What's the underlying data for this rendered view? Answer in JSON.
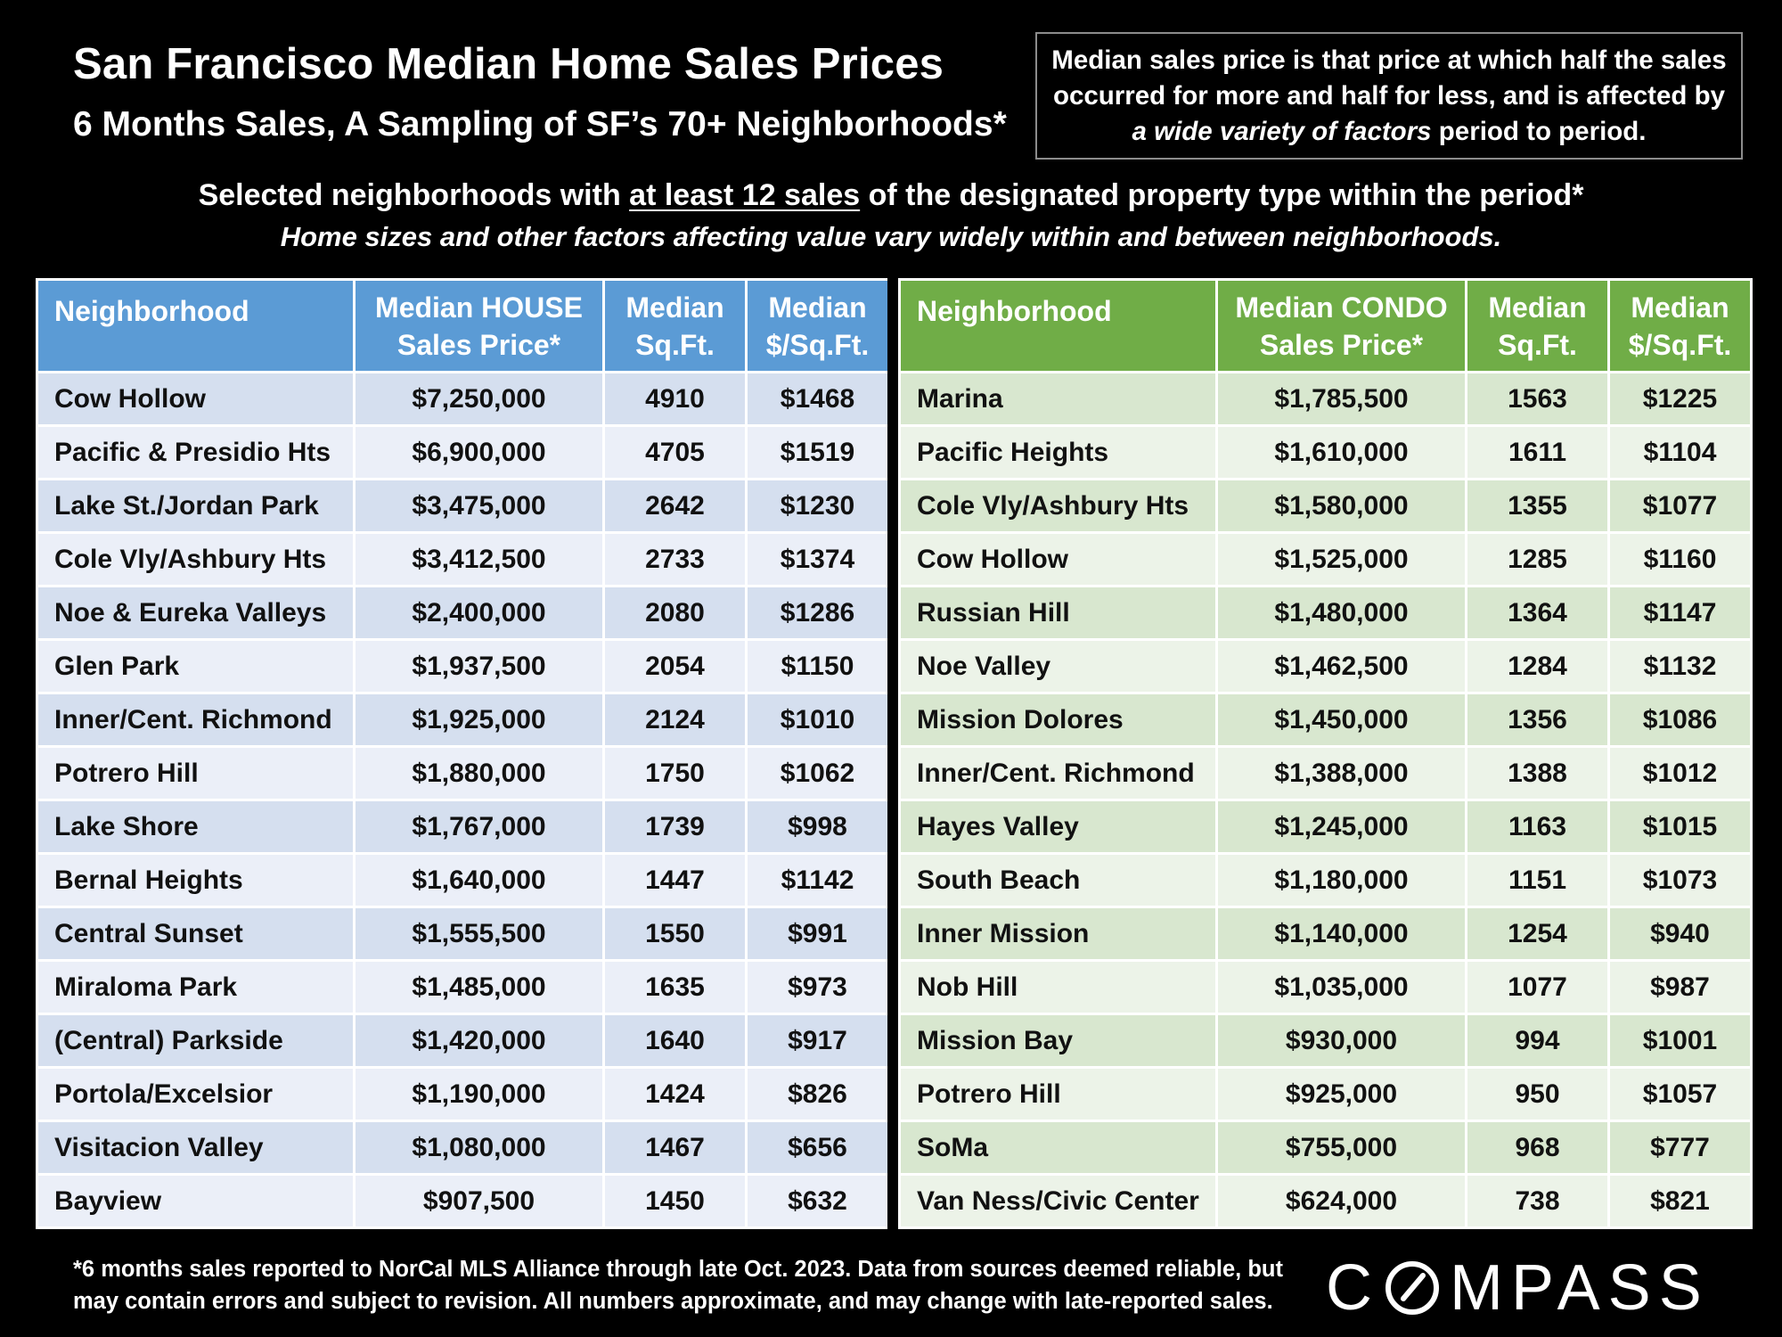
{
  "header": {
    "title": "San Francisco Median Home Sales Prices",
    "subtitle": "6 Months Sales, A Sampling of SF’s 70+ Neighborhoods*"
  },
  "note": {
    "line1": "Median sales price is that price at which half the sales",
    "line2": "occurred for more and half for less, and is affected by",
    "line3_italic": "a wide variety of factors",
    "line3_rest": " period to period."
  },
  "selection": {
    "before": "Selected neighborhoods with ",
    "underlined": "at least 12 sales",
    "after": " of the designated property type within the period*",
    "italic_line": "Home sizes and other factors affecting value vary widely within and between neighborhoods."
  },
  "footnote": {
    "line1": "*6 months sales reported to NorCal MLS Alliance through late Oct. 2023. Data from sources deemed reliable, but",
    "line2": "may contain errors and subject to revision. All numbers approximate, and may change with late-reported sales."
  },
  "logo": {
    "text": "COMPASS"
  },
  "colors": {
    "house_header": "#5b9bd5",
    "condo_header": "#70ad47",
    "house_row_dark": "#d5dfef",
    "house_row_light": "#ebeff8",
    "condo_row_dark": "#d8e7cf",
    "condo_row_light": "#ecf3e8",
    "background": "#000000"
  },
  "chart_data": [
    {
      "type": "table",
      "headers": [
        [
          "Neighborhood"
        ],
        [
          "Median HOUSE",
          "Sales Price*"
        ],
        [
          "Median",
          "Sq.Ft."
        ],
        [
          "Median",
          "$/Sq.Ft."
        ]
      ],
      "rows": [
        [
          "Cow Hollow",
          "$7,250,000",
          "4910",
          "$1468"
        ],
        [
          "Pacific & Presidio Hts",
          "$6,900,000",
          "4705",
          "$1519"
        ],
        [
          "Lake St./Jordan Park",
          "$3,475,000",
          "2642",
          "$1230"
        ],
        [
          "Cole Vly/Ashbury Hts",
          "$3,412,500",
          "2733",
          "$1374"
        ],
        [
          "Noe & Eureka Valleys",
          "$2,400,000",
          "2080",
          "$1286"
        ],
        [
          "Glen Park",
          "$1,937,500",
          "2054",
          "$1150"
        ],
        [
          "Inner/Cent. Richmond",
          "$1,925,000",
          "2124",
          "$1010"
        ],
        [
          "Potrero Hill",
          "$1,880,000",
          "1750",
          "$1062"
        ],
        [
          "Lake Shore",
          "$1,767,000",
          "1739",
          "$998"
        ],
        [
          "Bernal Heights",
          "$1,640,000",
          "1447",
          "$1142"
        ],
        [
          "Central Sunset",
          "$1,555,500",
          "1550",
          "$991"
        ],
        [
          "Miraloma Park",
          "$1,485,000",
          "1635",
          "$973"
        ],
        [
          "(Central) Parkside",
          "$1,420,000",
          "1640",
          "$917"
        ],
        [
          "Portola/Excelsior",
          "$1,190,000",
          "1424",
          "$826"
        ],
        [
          "Visitacion Valley",
          "$1,080,000",
          "1467",
          "$656"
        ],
        [
          "Bayview",
          "$907,500",
          "1450",
          "$632"
        ]
      ]
    },
    {
      "type": "table",
      "headers": [
        [
          "Neighborhood"
        ],
        [
          "Median CONDO",
          "Sales Price*"
        ],
        [
          "Median",
          "Sq.Ft."
        ],
        [
          "Median",
          "$/Sq.Ft."
        ]
      ],
      "rows": [
        [
          "Marina",
          "$1,785,500",
          "1563",
          "$1225"
        ],
        [
          "Pacific Heights",
          "$1,610,000",
          "1611",
          "$1104"
        ],
        [
          "Cole Vly/Ashbury Hts",
          "$1,580,000",
          "1355",
          "$1077"
        ],
        [
          "Cow Hollow",
          "$1,525,000",
          "1285",
          "$1160"
        ],
        [
          "Russian Hill",
          "$1,480,000",
          "1364",
          "$1147"
        ],
        [
          "Noe Valley",
          "$1,462,500",
          "1284",
          "$1132"
        ],
        [
          "Mission Dolores",
          "$1,450,000",
          "1356",
          "$1086"
        ],
        [
          "Inner/Cent. Richmond",
          "$1,388,000",
          "1388",
          "$1012"
        ],
        [
          "Hayes Valley",
          "$1,245,000",
          "1163",
          "$1015"
        ],
        [
          "South Beach",
          "$1,180,000",
          "1151",
          "$1073"
        ],
        [
          "Inner Mission",
          "$1,140,000",
          "1254",
          "$940"
        ],
        [
          "Nob Hill",
          "$1,035,000",
          "1077",
          "$987"
        ],
        [
          "Mission Bay",
          "$930,000",
          "994",
          "$1001"
        ],
        [
          "Potrero Hill",
          "$925,000",
          "950",
          "$1057"
        ],
        [
          "SoMa",
          "$755,000",
          "968",
          "$777"
        ],
        [
          "Van Ness/Civic Center",
          "$624,000",
          "738",
          "$821"
        ]
      ]
    }
  ]
}
